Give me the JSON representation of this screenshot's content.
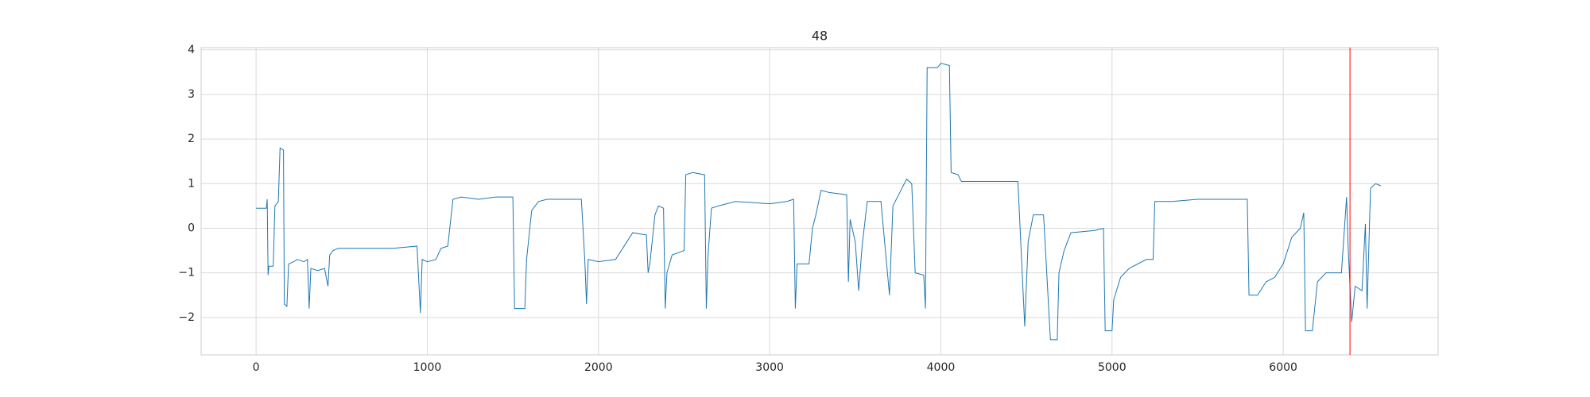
{
  "chart_data": {
    "type": "line",
    "title": "48",
    "x": [
      0,
      60,
      65,
      70,
      75,
      100,
      110,
      130,
      140,
      160,
      165,
      180,
      190,
      220,
      240,
      280,
      300,
      310,
      320,
      360,
      400,
      420,
      430,
      450,
      480,
      600,
      800,
      940,
      960,
      970,
      1000,
      1050,
      1080,
      1120,
      1150,
      1200,
      1300,
      1400,
      1500,
      1510,
      1570,
      1580,
      1610,
      1650,
      1700,
      1800,
      1900,
      1920,
      1930,
      1940,
      2000,
      2100,
      2150,
      2200,
      2280,
      2290,
      2300,
      2330,
      2350,
      2380,
      2390,
      2400,
      2430,
      2500,
      2510,
      2550,
      2620,
      2630,
      2640,
      2660,
      2700,
      2800,
      3000,
      3100,
      3140,
      3150,
      3160,
      3230,
      3250,
      3270,
      3300,
      3350,
      3450,
      3460,
      3470,
      3500,
      3520,
      3540,
      3570,
      3650,
      3700,
      3720,
      3760,
      3800,
      3830,
      3850,
      3900,
      3910,
      3920,
      3980,
      4000,
      4050,
      4060,
      4100,
      4120,
      4300,
      4450,
      4490,
      4510,
      4540,
      4600,
      4640,
      4680,
      4690,
      4720,
      4760,
      4900,
      4950,
      4960,
      5000,
      5010,
      5050,
      5100,
      5200,
      5240,
      5250,
      5350,
      5500,
      5700,
      5790,
      5800,
      5850,
      5900,
      5950,
      6000,
      6050,
      6100,
      6120,
      6130,
      6170,
      6200,
      6250,
      6340,
      6370,
      6380,
      6400,
      6420,
      6460,
      6480,
      6490,
      6510,
      6540,
      6570
    ],
    "series": [
      {
        "color": "#1f77b4",
        "values": [
          0.45,
          0.45,
          0.65,
          -1.05,
          -0.85,
          -0.85,
          0.5,
          0.6,
          1.8,
          1.75,
          -1.7,
          -1.75,
          -0.8,
          -0.75,
          -0.7,
          -0.75,
          -0.7,
          -1.8,
          -0.9,
          -0.95,
          -0.9,
          -1.3,
          -0.6,
          -0.5,
          -0.45,
          -0.45,
          -0.45,
          -0.4,
          -1.9,
          -0.7,
          -0.75,
          -0.7,
          -0.45,
          -0.4,
          0.65,
          0.7,
          0.65,
          0.7,
          0.7,
          -1.8,
          -1.8,
          -0.7,
          0.4,
          0.6,
          0.65,
          0.65,
          0.65,
          -0.7,
          -1.7,
          -0.7,
          -0.75,
          -0.7,
          -0.4,
          -0.1,
          -0.15,
          -1.0,
          -0.8,
          0.3,
          0.5,
          0.45,
          -1.8,
          -1.0,
          -0.6,
          -0.5,
          1.2,
          1.25,
          1.2,
          -1.8,
          -0.6,
          0.45,
          0.5,
          0.6,
          0.55,
          0.6,
          0.65,
          -1.8,
          -0.8,
          -0.8,
          0.0,
          0.3,
          0.85,
          0.8,
          0.75,
          -1.2,
          0.2,
          -0.3,
          -1.4,
          -0.4,
          0.6,
          0.6,
          -1.5,
          0.5,
          0.8,
          1.1,
          1.0,
          -1.0,
          -1.05,
          -1.8,
          3.6,
          3.6,
          3.7,
          3.65,
          1.25,
          1.2,
          1.05,
          1.05,
          1.05,
          -2.2,
          -0.3,
          0.3,
          0.3,
          -2.5,
          -2.5,
          -1.0,
          -0.5,
          -0.1,
          -0.05,
          0.0,
          -2.3,
          -2.3,
          -1.6,
          -1.1,
          -0.9,
          -0.7,
          -0.7,
          0.6,
          0.6,
          0.65,
          0.65,
          0.65,
          -1.5,
          -1.5,
          -1.2,
          -1.1,
          -0.8,
          -0.2,
          0.0,
          0.35,
          -2.3,
          -2.3,
          -1.2,
          -1.0,
          -1.0,
          0.7,
          -0.5,
          -2.1,
          -1.3,
          -1.4,
          0.1,
          -1.8,
          0.9,
          1.0,
          0.95
        ]
      }
    ],
    "vline": {
      "x": 6390,
      "color": "#ff0000"
    },
    "xlim": [
      -321,
      6905
    ],
    "ylim": [
      -2.84,
      4.05
    ],
    "xticks": [
      0,
      1000,
      2000,
      3000,
      4000,
      5000,
      6000
    ],
    "yticks": [
      {
        "value": -2,
        "label": "−2"
      },
      {
        "value": -1,
        "label": "−1"
      },
      0,
      1,
      2,
      3,
      4
    ],
    "grid": true
  }
}
